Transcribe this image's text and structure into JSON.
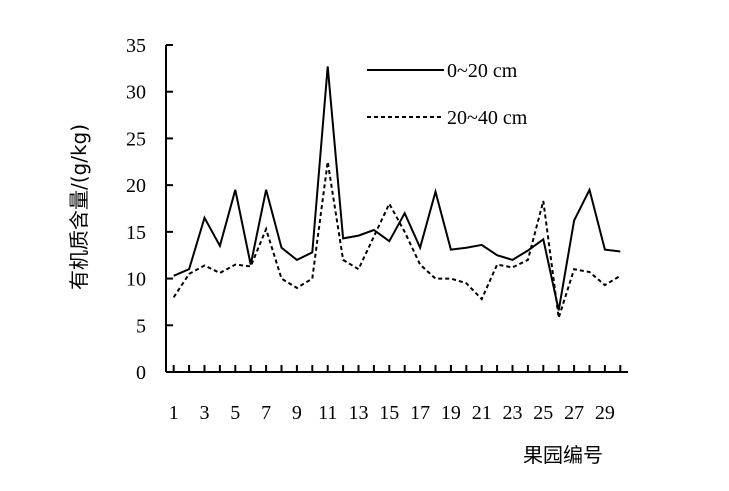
{
  "chart_data": {
    "type": "line",
    "title": "",
    "xlabel": "果园编号",
    "ylabel": "有机质含量/(g/kg)",
    "ylim": [
      0,
      35
    ],
    "yticks": [
      "0",
      "5",
      "10",
      "15",
      "20",
      "25",
      "30",
      "35"
    ],
    "xticks": [
      "1",
      "3",
      "5",
      "7",
      "9",
      "11",
      "13",
      "15",
      "17",
      "19",
      "21",
      "23",
      "25",
      "27",
      "29"
    ],
    "x": [
      1,
      2,
      3,
      4,
      5,
      6,
      7,
      8,
      9,
      10,
      11,
      12,
      13,
      14,
      15,
      16,
      17,
      18,
      19,
      20,
      21,
      22,
      23,
      24,
      25,
      26,
      27,
      28,
      29,
      30
    ],
    "grid": false,
    "legend_position": "top-right",
    "series": [
      {
        "name": "0~20 cm",
        "style": "solid",
        "color": "#000000",
        "values": [
          10.3,
          11.0,
          16.5,
          13.5,
          19.5,
          11.5,
          19.5,
          13.3,
          12.0,
          12.8,
          32.7,
          14.3,
          14.6,
          15.2,
          14.0,
          17.0,
          13.3,
          19.3,
          13.1,
          13.3,
          13.6,
          12.5,
          12.0,
          13.0,
          14.2,
          6.6,
          16.2,
          19.5,
          13.1,
          12.9
        ]
      },
      {
        "name": "20~40 cm",
        "style": "dashed",
        "color": "#000000",
        "values": [
          8.0,
          10.5,
          11.4,
          10.6,
          11.5,
          11.3,
          15.3,
          10.0,
          9.0,
          10.0,
          22.5,
          12.0,
          11.0,
          14.5,
          18.0,
          15.0,
          11.5,
          10.0,
          10.0,
          9.5,
          7.8,
          11.5,
          11.2,
          12.0,
          18.3,
          5.8,
          11.0,
          10.7,
          9.3,
          10.3
        ]
      }
    ]
  }
}
